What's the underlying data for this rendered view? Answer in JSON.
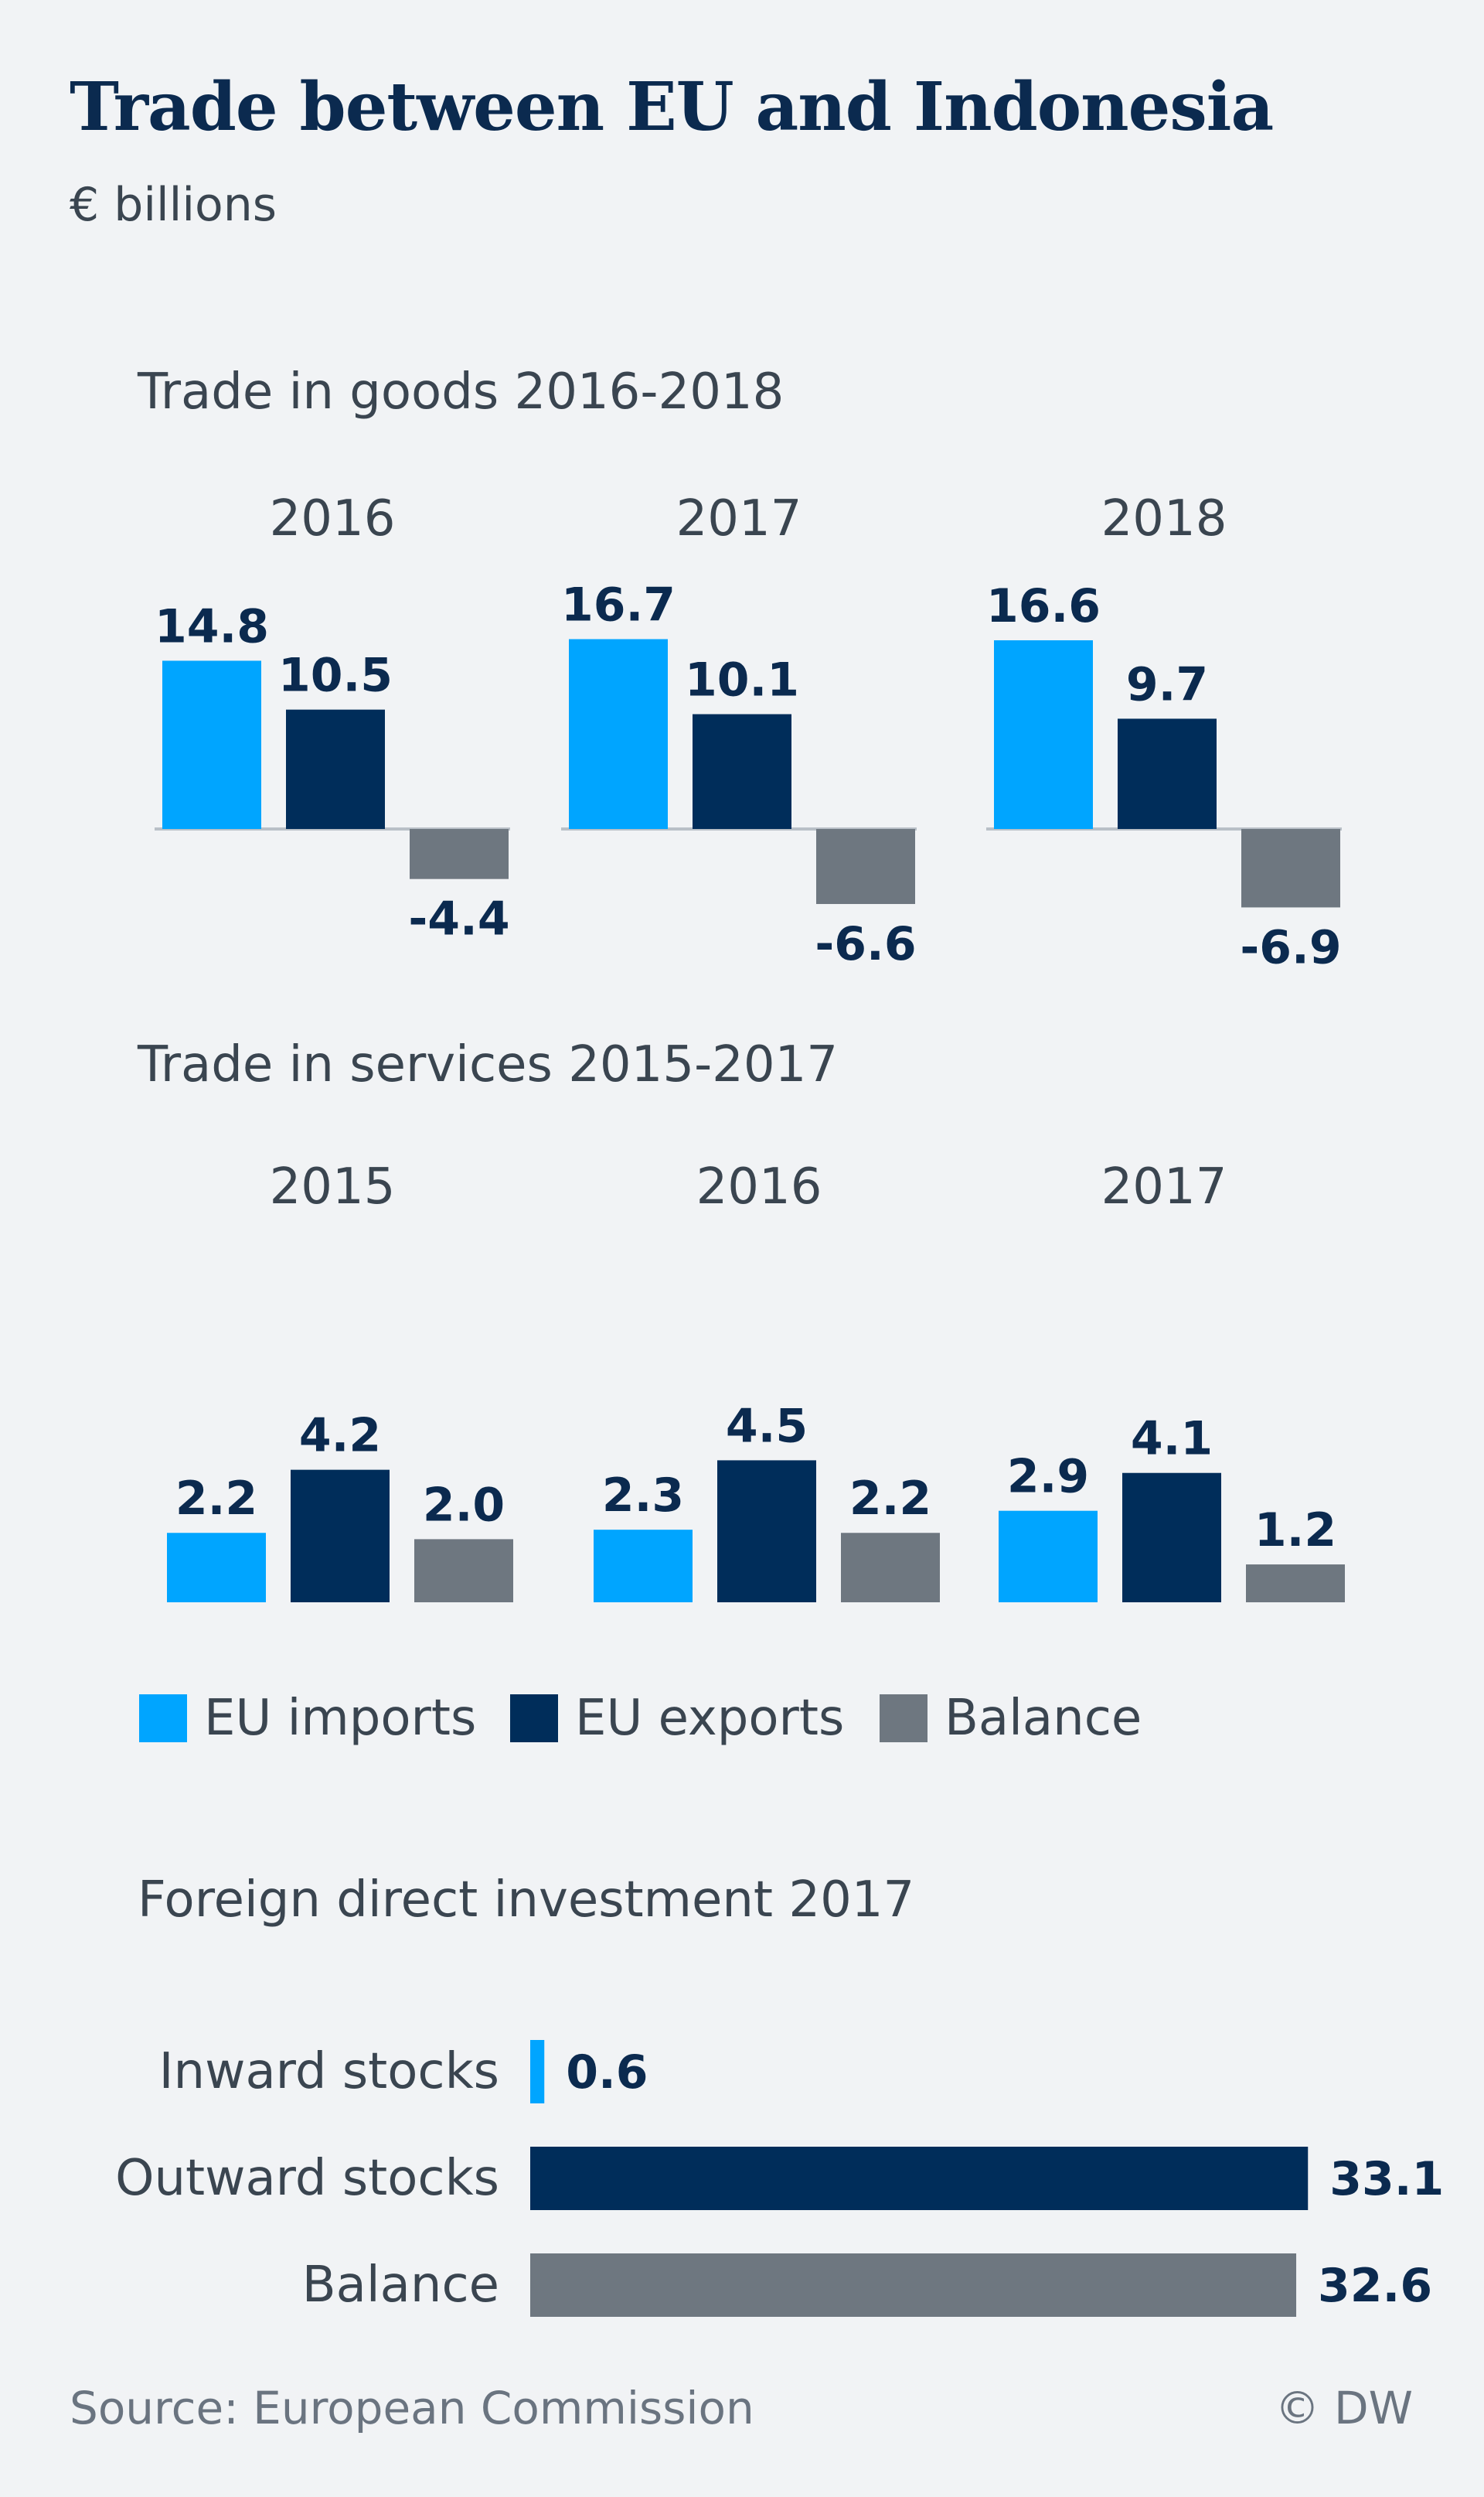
{
  "title": "Trade between EU and Indonesia",
  "subtitle": "€ billions",
  "colors": {
    "imports": "#00a5ff",
    "exports": "#002d5a",
    "balance": "#6e7780",
    "axis": "#b9c0c7",
    "label": "#0b2a4f"
  },
  "legend": {
    "imports": "EU imports",
    "exports": "EU exports",
    "balance": "Balance"
  },
  "source": "Source: European Commission",
  "credit": "© DW",
  "chart_data": [
    {
      "type": "bar",
      "title": "Trade in goods 2016-2018",
      "categories": [
        "2016",
        "2017",
        "2018"
      ],
      "series": [
        {
          "name": "EU imports",
          "values": [
            14.8,
            16.7,
            16.6
          ]
        },
        {
          "name": "EU exports",
          "values": [
            10.5,
            10.1,
            9.7
          ]
        },
        {
          "name": "Balance",
          "values": [
            -4.4,
            -6.6,
            -6.9
          ]
        }
      ],
      "value_labels": [
        [
          "14.8",
          "16.7",
          "16.6"
        ],
        [
          "10.5",
          "10.1",
          "9.7"
        ],
        [
          "-4.4",
          "-6.6",
          "-6.9"
        ]
      ]
    },
    {
      "type": "bar",
      "title": "Trade in services 2015-2017",
      "categories": [
        "2015",
        "2016",
        "2017"
      ],
      "series": [
        {
          "name": "EU imports",
          "values": [
            2.2,
            2.3,
            2.9
          ]
        },
        {
          "name": "EU exports",
          "values": [
            4.2,
            4.5,
            4.1
          ]
        },
        {
          "name": "Balance",
          "values": [
            2.0,
            2.2,
            1.2
          ]
        }
      ],
      "value_labels": [
        [
          "2.2",
          "2.3",
          "2.9"
        ],
        [
          "4.2",
          "4.5",
          "4.1"
        ],
        [
          "2.0",
          "2.2",
          "1.2"
        ]
      ]
    },
    {
      "type": "bar",
      "orientation": "horizontal",
      "title": "Foreign direct investment 2017",
      "categories": [
        "Inward stocks",
        "Outward stocks",
        "Balance"
      ],
      "values": [
        0.6,
        33.1,
        32.6
      ],
      "value_labels": [
        "0.6",
        "33.1",
        "32.6"
      ]
    }
  ]
}
